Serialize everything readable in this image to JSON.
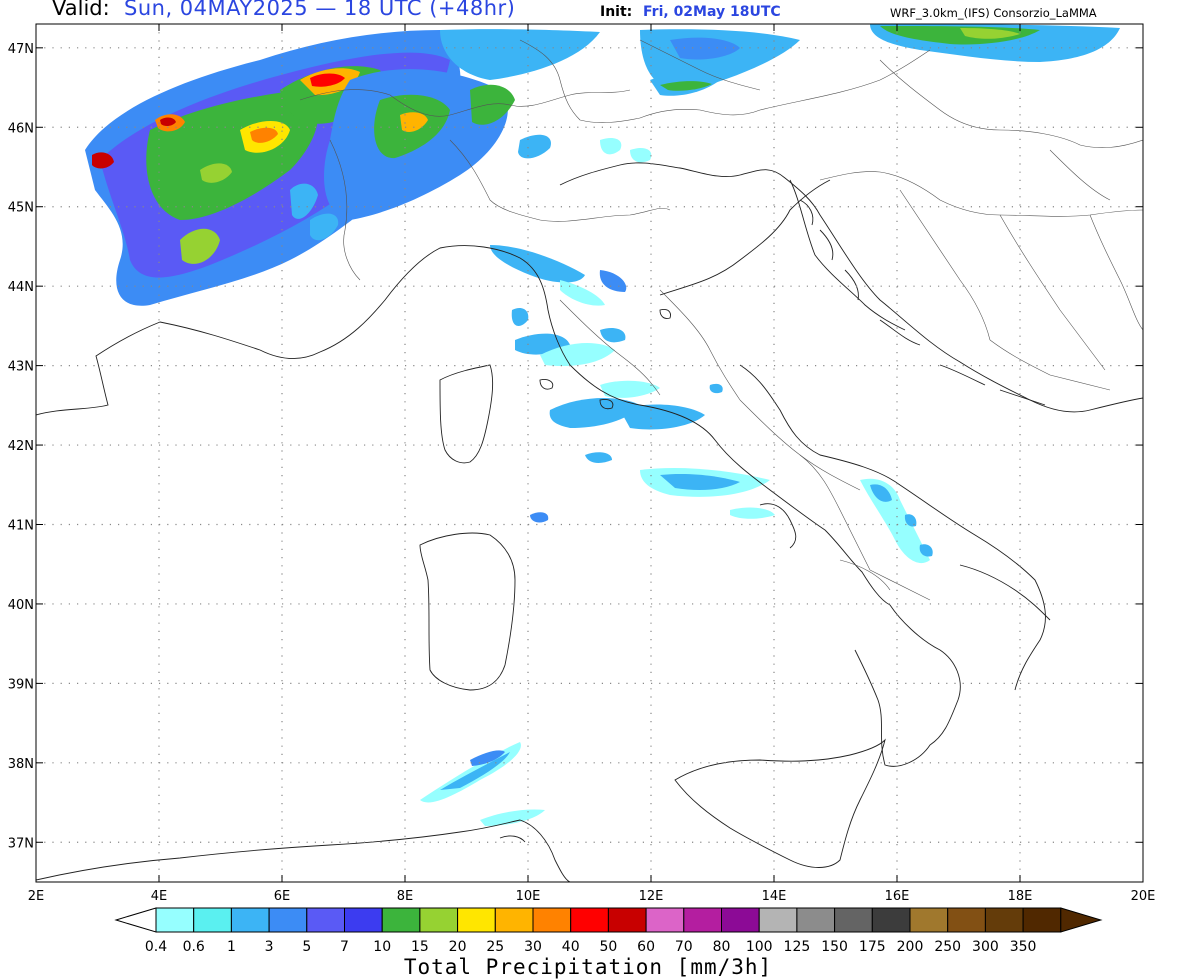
{
  "header": {
    "valid_label": "Valid:",
    "valid_value": "Sun, 04MAY2025 — 18 UTC (+48hr)",
    "init_label": "Init:",
    "init_value": "Fri, 02May 18UTC",
    "model": "WRF_3.0km_(IFS)   Consorzio_LaMMA"
  },
  "map": {
    "lon_range": [
      2,
      20
    ],
    "lat_range": [
      36.5,
      47.3
    ],
    "lon_ticks": [
      {
        "value": 2,
        "label": "2E"
      },
      {
        "value": 4,
        "label": "4E"
      },
      {
        "value": 6,
        "label": "6E"
      },
      {
        "value": 8,
        "label": "8E"
      },
      {
        "value": 10,
        "label": "10E"
      },
      {
        "value": 12,
        "label": "12E"
      },
      {
        "value": 14,
        "label": "14E"
      },
      {
        "value": 16,
        "label": "16E"
      },
      {
        "value": 18,
        "label": "18E"
      },
      {
        "value": 20,
        "label": "20E"
      }
    ],
    "lat_ticks": [
      {
        "value": 37,
        "label": "37N"
      },
      {
        "value": 38,
        "label": "38N"
      },
      {
        "value": 39,
        "label": "39N"
      },
      {
        "value": 40,
        "label": "40N"
      },
      {
        "value": 41,
        "label": "41N"
      },
      {
        "value": 42,
        "label": "42N"
      },
      {
        "value": 43,
        "label": "43N"
      },
      {
        "value": 44,
        "label": "44N"
      },
      {
        "value": 45,
        "label": "45N"
      },
      {
        "value": 46,
        "label": "46N"
      },
      {
        "value": 47,
        "label": "47N"
      }
    ],
    "grid": "dotted",
    "field": "Total Precipitation",
    "field_unit": "mm/3h",
    "precip_areas": [
      {
        "name": "western-alps-france",
        "center": [
          5.5,
          45.4
        ],
        "peak_mm": 50
      },
      {
        "name": "central-alps",
        "center": [
          8.8,
          46.0
        ],
        "peak_mm": 30
      },
      {
        "name": "eastern-alps-austria",
        "center": [
          17.5,
          47.0
        ],
        "peak_mm": 20
      },
      {
        "name": "ligurian-apennines",
        "center": [
          10.3,
          44.2
        ],
        "peak_mm": 5
      },
      {
        "name": "tyrrhenian-sea",
        "center": [
          10.8,
          42.8
        ],
        "peak_mm": 5
      },
      {
        "name": "lazio-coast",
        "center": [
          12.8,
          41.5
        ],
        "peak_mm": 5
      },
      {
        "name": "apulia",
        "center": [
          16.3,
          41.0
        ],
        "peak_mm": 3
      },
      {
        "name": "sicily-channel",
        "center": [
          9.6,
          37.9
        ],
        "peak_mm": 5
      }
    ]
  },
  "colorbar": {
    "title": "Total Precipitation [mm/3h]",
    "labels": [
      "0.4",
      "0.6",
      "1",
      "3",
      "5",
      "7",
      "10",
      "15",
      "20",
      "25",
      "30",
      "40",
      "50",
      "60",
      "70",
      "80",
      "100",
      "125",
      "150",
      "175",
      "200",
      "250",
      "300",
      "350"
    ],
    "colors": [
      "#96ffff",
      "#5af0f0",
      "#3cb4f5",
      "#3c8cf5",
      "#5a5af5",
      "#3c3cf0",
      "#3cb43c",
      "#96d232",
      "#ffe600",
      "#ffb400",
      "#ff8200",
      "#ff0000",
      "#c80000",
      "#dc64c8",
      "#b41ea0",
      "#8c0a96",
      "#b4b4b4",
      "#8c8c8c",
      "#646464",
      "#3c3c3c",
      "#a0782d",
      "#825014",
      "#643c0a",
      "#502800"
    ],
    "under_color": "#ffffff",
    "over_color": "#502800"
  }
}
